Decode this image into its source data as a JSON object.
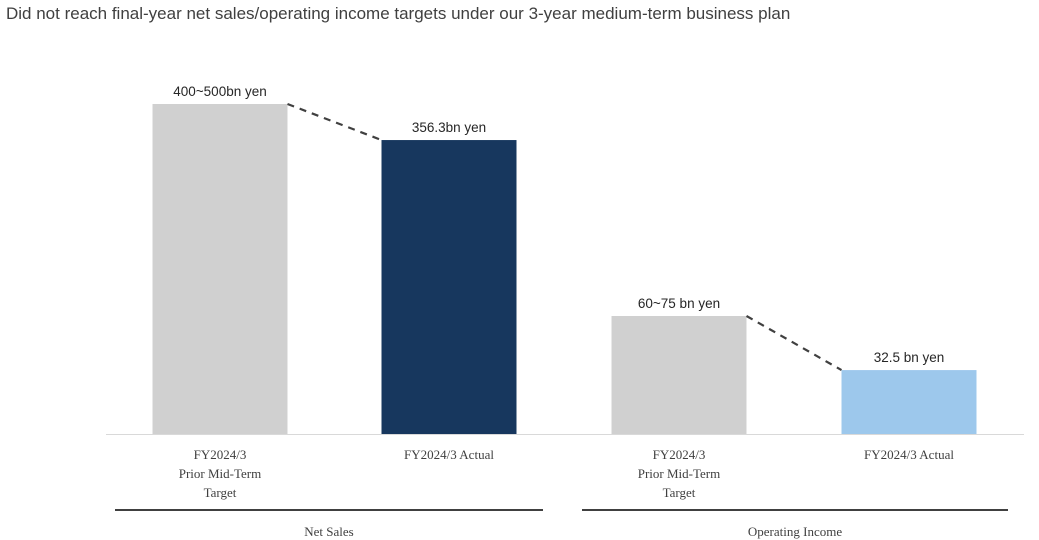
{
  "title": "Did not reach final-year net sales/operating income targets under our 3-year medium-term business plan",
  "colors": {
    "target": "#d0d0d0",
    "net_sales_actual": "#17375e",
    "operating_income_actual": "#9dc8ec",
    "connector": "#404040",
    "axis": "#d9d9d9",
    "group_rule": "#404040"
  },
  "chart_data": {
    "type": "bar",
    "groups": [
      {
        "name": "Net Sales",
        "bars": [
          {
            "category_lines": [
              "FY2024/3",
              "Prior Mid-Term",
              "Target"
            ],
            "label": "400~500bn yen",
            "value": 400,
            "range": [
              400,
              500
            ],
            "color": "#d0d0d0"
          },
          {
            "category_lines": [
              "FY2024/3 Actual"
            ],
            "label": "356.3bn yen",
            "value": 356.3,
            "color": "#17375e"
          }
        ]
      },
      {
        "name": "Operating Income",
        "bars": [
          {
            "category_lines": [
              "FY2024/3",
              "Prior Mid-Term",
              "Target"
            ],
            "label": "60~75 bn yen",
            "value": 60,
            "range": [
              60,
              75
            ],
            "color": "#d0d0d0"
          },
          {
            "category_lines": [
              "FY2024/3 Actual"
            ],
            "label": "32.5 bn yen",
            "value": 32.5,
            "color": "#9dc8ec"
          }
        ]
      }
    ],
    "connectors": "dashed line from target bar top to actual bar top within each group",
    "grid": false,
    "legend": "none"
  }
}
